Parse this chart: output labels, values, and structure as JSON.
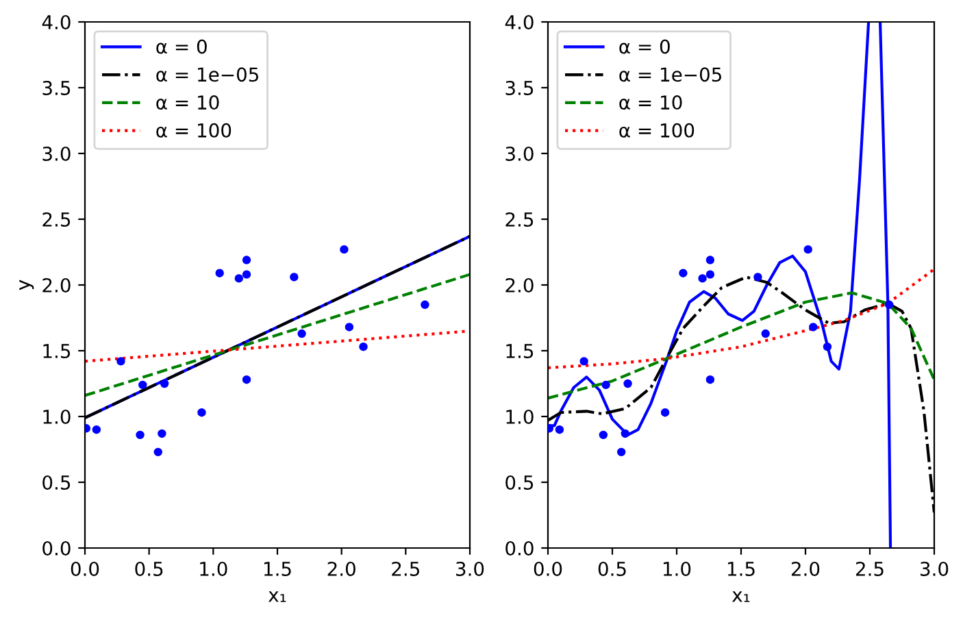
{
  "chart_data": [
    {
      "type": "line",
      "xlabel": "x₁",
      "ylabel": "y",
      "xlim": [
        0,
        3
      ],
      "ylim": [
        0,
        4
      ],
      "xticks": [
        {
          "value": 0,
          "label": "0.0"
        },
        0.5,
        {
          "value": 1,
          "label": "1.0"
        },
        1.5,
        {
          "value": 2,
          "label": "2.0"
        },
        2.5,
        {
          "value": 3,
          "label": "3.0"
        }
      ],
      "yticks": [
        {
          "value": 0,
          "label": "0.0"
        },
        0.5,
        {
          "value": 1,
          "label": "1.0"
        },
        1.5,
        {
          "value": 2,
          "label": "2.0"
        },
        2.5,
        {
          "value": 3,
          "label": "3.0"
        },
        3.5,
        {
          "value": 4,
          "label": "4.0"
        }
      ],
      "legend": "top left",
      "grid": false,
      "series": [
        {
          "type": "scatter",
          "marker": "circle",
          "color": "#0000ff",
          "x": [
            0.01,
            0.09,
            0.28,
            0.45,
            0.43,
            0.57,
            0.6,
            0.62,
            0.91,
            1.05,
            1.2,
            1.26,
            1.26,
            1.26,
            1.63,
            1.69,
            2.02,
            2.06,
            2.17,
            2.65
          ],
          "values": [
            0.91,
            0.9,
            1.42,
            1.24,
            0.86,
            0.73,
            0.87,
            1.25,
            1.03,
            2.09,
            2.05,
            2.19,
            2.08,
            1.28,
            2.06,
            1.63,
            2.27,
            1.68,
            1.53,
            1.85
          ]
        },
        {
          "name": "α = 0",
          "color": "#0000ff",
          "line_style": "solid",
          "x": [
            0,
            3
          ],
          "values": [
            0.99,
            2.37
          ]
        },
        {
          "name": "α = 1e−05",
          "color": "#000000",
          "line_style": "dashdot",
          "x": [
            0,
            3
          ],
          "values": [
            0.99,
            2.37
          ]
        },
        {
          "name": "α = 10",
          "color": "#008000",
          "line_style": "dashed",
          "x": [
            0,
            3
          ],
          "values": [
            1.16,
            2.08
          ]
        },
        {
          "name": "α = 100",
          "color": "#ff0000",
          "line_style": "dotted",
          "x": [
            0,
            3
          ],
          "values": [
            1.42,
            1.65
          ]
        }
      ]
    },
    {
      "type": "line",
      "xlabel": "x₁",
      "xlim": [
        0,
        3
      ],
      "ylim": [
        0,
        4
      ],
      "xticks": [
        {
          "value": 0,
          "label": "0.0"
        },
        0.5,
        {
          "value": 1,
          "label": "1.0"
        },
        1.5,
        {
          "value": 2,
          "label": "2.0"
        },
        2.5,
        {
          "value": 3,
          "label": "3.0"
        }
      ],
      "yticks": [
        {
          "value": 0,
          "label": "0.0"
        },
        0.5,
        {
          "value": 1,
          "label": "1.0"
        },
        1.5,
        {
          "value": 2,
          "label": "2.0"
        },
        2.5,
        {
          "value": 3,
          "label": "3.0"
        },
        3.5,
        {
          "value": 4,
          "label": "4.0"
        }
      ],
      "legend": "top left",
      "grid": false,
      "series": [
        {
          "type": "scatter",
          "marker": "circle",
          "color": "#0000ff",
          "x": [
            0.01,
            0.09,
            0.28,
            0.45,
            0.43,
            0.57,
            0.6,
            0.62,
            0.91,
            1.05,
            1.2,
            1.26,
            1.26,
            1.26,
            1.63,
            1.69,
            2.02,
            2.06,
            2.17,
            2.65
          ],
          "values": [
            0.91,
            0.9,
            1.42,
            1.24,
            0.86,
            0.73,
            0.87,
            1.25,
            1.03,
            2.09,
            2.05,
            2.19,
            2.08,
            1.28,
            2.06,
            1.63,
            2.27,
            1.68,
            1.53,
            1.85
          ]
        },
        {
          "name": "α = 0",
          "color": "#0000ff",
          "line_style": "solid",
          "x": [
            0,
            0.05,
            0.1,
            0.2,
            0.3,
            0.4,
            0.5,
            0.62,
            0.7,
            0.8,
            0.92,
            1.0,
            1.1,
            1.21,
            1.3,
            1.4,
            1.51,
            1.6,
            1.7,
            1.8,
            1.9,
            2.0,
            2.13,
            2.2,
            2.26,
            2.35,
            2.42,
            2.49,
            2.54,
            2.58,
            2.64,
            2.66
          ],
          "values": [
            0.93,
            0.93,
            1.04,
            1.22,
            1.3,
            1.2,
            0.98,
            0.86,
            0.9,
            1.1,
            1.42,
            1.65,
            1.87,
            1.95,
            1.9,
            1.78,
            1.73,
            1.8,
            2.0,
            2.17,
            2.22,
            2.1,
            1.7,
            1.42,
            1.36,
            1.8,
            2.8,
            4.0,
            null,
            4.0,
            1.86,
            0.0
          ]
        },
        {
          "name": "α = 1e−05",
          "color": "#000000",
          "line_style": "dashdot",
          "x": [
            0,
            0.1,
            0.3,
            0.42,
            0.6,
            0.8,
            0.92,
            1.05,
            1.21,
            1.35,
            1.54,
            1.7,
            1.82,
            2.0,
            2.18,
            2.3,
            2.46,
            2.64,
            2.75,
            2.82,
            2.92,
            3.0
          ],
          "values": [
            0.97,
            1.03,
            1.04,
            1.02,
            1.06,
            1.22,
            1.44,
            1.67,
            1.84,
            1.98,
            2.06,
            2.02,
            1.94,
            1.81,
            1.71,
            1.72,
            1.81,
            1.86,
            1.8,
            1.67,
            1.04,
            0.27
          ]
        },
        {
          "name": "α = 10",
          "color": "#008000",
          "line_style": "dashed",
          "x": [
            0,
            0.5,
            0.92,
            1.5,
            2.0,
            2.36,
            2.64,
            2.82,
            3.0
          ],
          "values": [
            1.14,
            1.27,
            1.44,
            1.68,
            1.87,
            1.94,
            1.86,
            1.67,
            1.28
          ]
        },
        {
          "name": "α = 100",
          "color": "#ff0000",
          "line_style": "dotted",
          "x": [
            0,
            0.5,
            0.92,
            1.5,
            2.07,
            2.3,
            2.64,
            3.0
          ],
          "values": [
            1.37,
            1.4,
            1.44,
            1.53,
            1.67,
            1.73,
            1.86,
            2.12
          ]
        }
      ]
    }
  ]
}
